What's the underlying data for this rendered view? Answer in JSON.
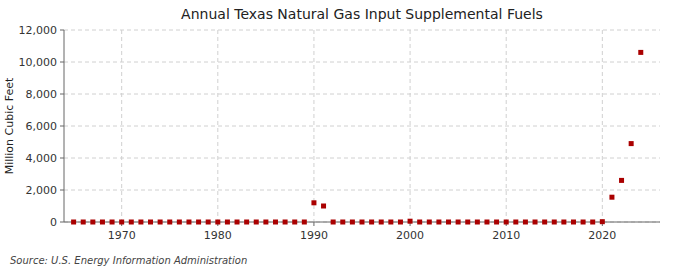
{
  "chart_data": {
    "type": "scatter",
    "title": "Annual Texas Natural Gas Input Supplemental Fuels",
    "ylabel": "Million Cubic Feet",
    "source": "Source: U.S. Energy Information Administration",
    "x": [
      1965,
      1966,
      1967,
      1968,
      1969,
      1970,
      1971,
      1972,
      1973,
      1974,
      1975,
      1976,
      1977,
      1978,
      1979,
      1980,
      1981,
      1982,
      1983,
      1984,
      1985,
      1986,
      1987,
      1988,
      1989,
      1990,
      1991,
      1992,
      1993,
      1994,
      1995,
      1996,
      1997,
      1998,
      1999,
      2000,
      2001,
      2002,
      2003,
      2004,
      2005,
      2006,
      2007,
      2008,
      2009,
      2010,
      2011,
      2012,
      2013,
      2014,
      2015,
      2016,
      2017,
      2018,
      2019,
      2020,
      2021,
      2022,
      2023,
      2024
    ],
    "values": [
      0,
      0,
      0,
      0,
      0,
      0,
      0,
      0,
      0,
      0,
      0,
      0,
      0,
      0,
      0,
      0,
      0,
      0,
      0,
      0,
      0,
      0,
      0,
      0,
      0,
      1200,
      1000,
      0,
      0,
      0,
      0,
      0,
      0,
      0,
      0,
      50,
      0,
      0,
      0,
      0,
      0,
      0,
      0,
      0,
      0,
      0,
      0,
      0,
      0,
      0,
      0,
      0,
      0,
      0,
      0,
      20,
      1550,
      2600,
      4900,
      10600
    ],
    "color": "#aa0000",
    "marker": "square",
    "xlim": [
      1964,
      2026
    ],
    "ylim": [
      0,
      12000
    ],
    "xticks": [
      1970,
      1980,
      1990,
      2000,
      2010,
      2020
    ],
    "yticks": [
      0,
      {
        "value": 2000,
        "label": "2,000"
      },
      {
        "value": 4000,
        "label": "4,000"
      },
      {
        "value": 6000,
        "label": "6,000"
      },
      {
        "value": 8000,
        "label": "8,000"
      },
      {
        "value": 10000,
        "label": "10,000"
      },
      {
        "value": 12000,
        "label": "12,000"
      }
    ],
    "grid": true
  }
}
